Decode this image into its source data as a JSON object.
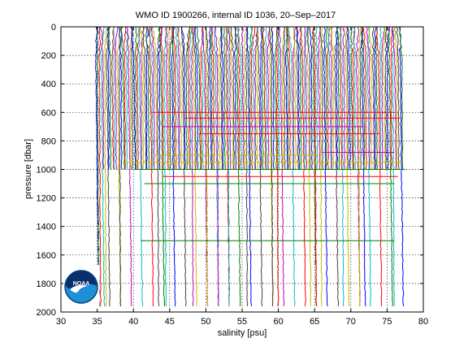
{
  "chart_data": {
    "type": "line",
    "title": "WMO ID 1900266, internal ID 1036, 20–Sep–2017",
    "xlabel": "salinity [psu]",
    "ylabel": "pressure [dbar]",
    "xlim": [
      30,
      80
    ],
    "ylim": [
      0,
      2000
    ],
    "y_reversed": true,
    "xticks": [
      30,
      35,
      40,
      45,
      50,
      55,
      60,
      65,
      70,
      75,
      80
    ],
    "yticks": [
      0,
      200,
      400,
      600,
      800,
      1000,
      1200,
      1400,
      1600,
      1800,
      2000
    ],
    "grid": true,
    "legend": "none",
    "series_description": "Salinity profiles, each successive profile offset in salinity",
    "colors": [
      "#0000ff",
      "#007f00",
      "#ff0000",
      "#00bfbf",
      "#bf00bf",
      "#bfbf00",
      "#404040"
    ],
    "profile_count": 170,
    "profile_base_salinity": 34.8,
    "profile_offset_step": 0.25,
    "shallow_profile_max_pressure": 1000,
    "deep_profile_max_pressure": 1960
  },
  "logo": {
    "text": "NOAA",
    "icon": "noaa-logo-icon"
  }
}
